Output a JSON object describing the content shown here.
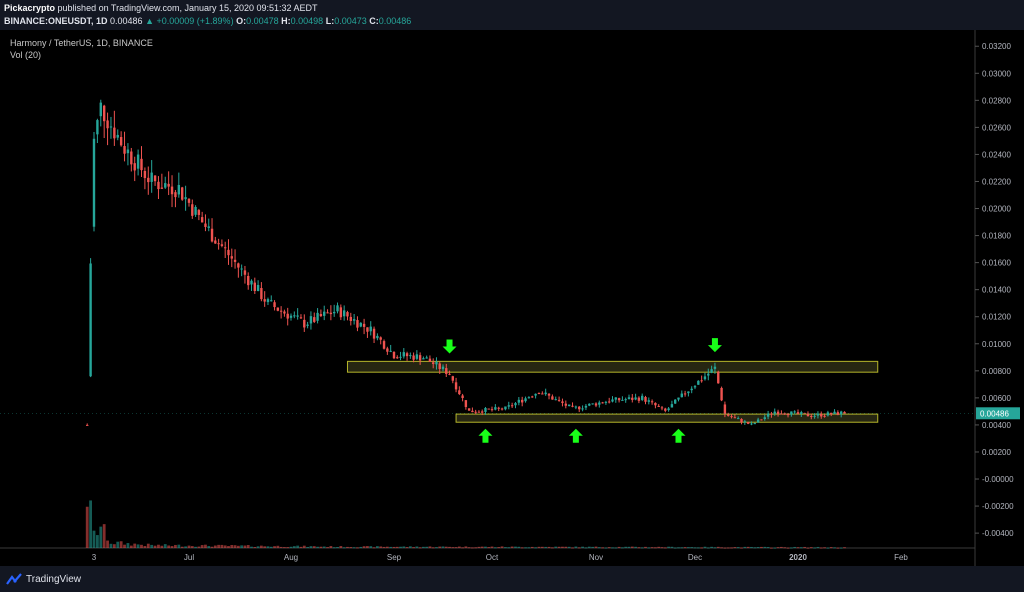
{
  "header": {
    "author": "Pickacrypto",
    "published": "published on TradingView.com, January 15, 2020 09:51:32 AEDT",
    "symbol": "BINANCE:ONEUSDT, 1D",
    "last": "0.00486",
    "change": "▲ +0.00009 (+1.89%)",
    "o_label": "O:",
    "o": "0.00478",
    "h_label": "H:",
    "h": "0.00498",
    "l_label": "L:",
    "l": "0.00473",
    "c_label": "C:",
    "c": "0.00486"
  },
  "panel": {
    "title": "Harmony / TetherUS, 1D, BINANCE",
    "volume_label": "Vol (20)"
  },
  "footer": {
    "brand": "TradingView"
  },
  "colors": {
    "up": "#26a69a",
    "down": "#ef5350",
    "zone_fill": "#2a2a14",
    "zone_border": "#b5b52a",
    "arrow": "#19ff19",
    "price_tag": "#26a69a"
  },
  "chart_data": {
    "type": "candlestick",
    "x_tick_labels": [
      "3",
      "Jul",
      "Aug",
      "Sep",
      "Oct",
      "Nov",
      "Dec",
      "2020",
      "Feb"
    ],
    "y_tick_labels": [
      "0.03200",
      "0.03000",
      "0.02800",
      "0.02600",
      "0.02400",
      "0.02200",
      "0.02000",
      "0.01800",
      "0.01600",
      "0.01400",
      "0.01200",
      "0.01000",
      "0.00800",
      "0.00600",
      "0.00400",
      "0.00200",
      "-0.00000",
      "-0.00200",
      "-0.00400"
    ],
    "ylim": [
      -0.0051,
      0.0332
    ],
    "current_price_label": "0.00486",
    "trend": [
      {
        "date": "2019-06-01",
        "price": 0.004
      },
      {
        "date": "2019-06-02",
        "price": 0.016
      },
      {
        "date": "2019-06-03",
        "price": 0.025
      },
      {
        "date": "2019-06-05",
        "price": 0.0275
      },
      {
        "date": "2019-06-12",
        "price": 0.0245
      },
      {
        "date": "2019-06-20",
        "price": 0.022
      },
      {
        "date": "2019-06-28",
        "price": 0.0215
      },
      {
        "date": "2019-07-05",
        "price": 0.019
      },
      {
        "date": "2019-07-15",
        "price": 0.016
      },
      {
        "date": "2019-07-25",
        "price": 0.013
      },
      {
        "date": "2019-08-05",
        "price": 0.0115
      },
      {
        "date": "2019-08-15",
        "price": 0.0125
      },
      {
        "date": "2019-08-25",
        "price": 0.011
      },
      {
        "date": "2019-09-01",
        "price": 0.0092
      },
      {
        "date": "2019-09-10",
        "price": 0.009
      },
      {
        "date": "2019-09-18",
        "price": 0.0078
      },
      {
        "date": "2019-09-24",
        "price": 0.005
      },
      {
        "date": "2019-10-05",
        "price": 0.0052
      },
      {
        "date": "2019-10-15",
        "price": 0.0065
      },
      {
        "date": "2019-10-25",
        "price": 0.0052
      },
      {
        "date": "2019-11-05",
        "price": 0.0058
      },
      {
        "date": "2019-11-15",
        "price": 0.006
      },
      {
        "date": "2019-11-22",
        "price": 0.005
      },
      {
        "date": "2019-11-30",
        "price": 0.0068
      },
      {
        "date": "2019-12-07",
        "price": 0.0082
      },
      {
        "date": "2019-12-10",
        "price": 0.0048
      },
      {
        "date": "2019-12-18",
        "price": 0.004
      },
      {
        "date": "2019-12-25",
        "price": 0.005
      },
      {
        "date": "2020-01-05",
        "price": 0.0047
      },
      {
        "date": "2020-01-15",
        "price": 0.0049
      }
    ],
    "volume_trend": [
      {
        "date": "2019-06-01",
        "value": 0.0041
      },
      {
        "date": "2019-06-03",
        "value": 0.001
      },
      {
        "date": "2019-06-05",
        "value": 0.0016
      },
      {
        "date": "2019-06-08",
        "value": 0.0004
      },
      {
        "date": "2019-06-20",
        "value": 0.0002
      },
      {
        "date": "2019-08-15",
        "value": 0.0001
      },
      {
        "date": "2020-01-15",
        "value": 5e-05
      }
    ],
    "zones": [
      {
        "name": "resistance",
        "from": "2019-08-18",
        "to": "2020-01-25",
        "low": 0.0079,
        "high": 0.0087
      },
      {
        "name": "support",
        "from": "2019-09-20",
        "to": "2020-01-25",
        "low": 0.0042,
        "high": 0.0048
      }
    ],
    "arrows": [
      {
        "direction": "down",
        "date": "2019-09-18",
        "price": 0.0098
      },
      {
        "direction": "down",
        "date": "2019-12-07",
        "price": 0.0099
      },
      {
        "direction": "up",
        "date": "2019-09-29",
        "price": 0.0032
      },
      {
        "direction": "up",
        "date": "2019-10-26",
        "price": 0.0032
      },
      {
        "direction": "up",
        "date": "2019-11-26",
        "price": 0.0032
      }
    ]
  }
}
